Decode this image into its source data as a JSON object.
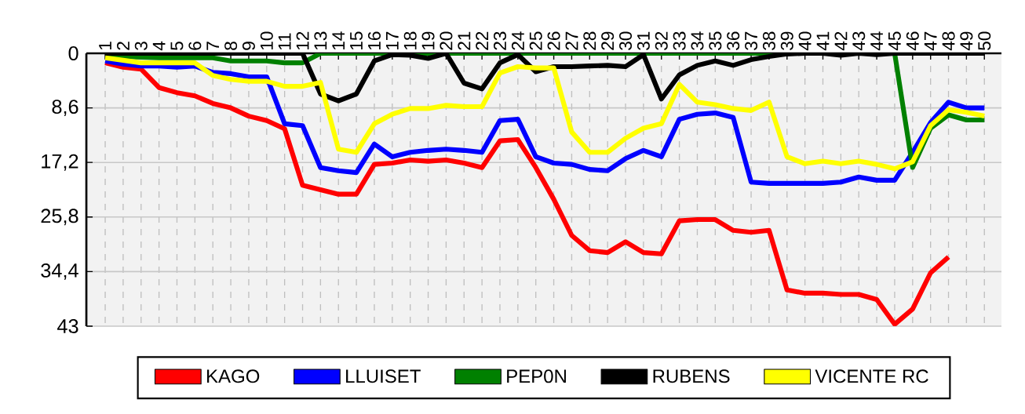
{
  "chart_data": {
    "type": "line",
    "categories": [
      "1",
      "2",
      "3",
      "4",
      "5",
      "6",
      "7",
      "8",
      "9",
      "10",
      "11",
      "12",
      "13",
      "14",
      "15",
      "16",
      "17",
      "18",
      "19",
      "20",
      "21",
      "22",
      "23",
      "24",
      "25",
      "26",
      "27",
      "28",
      "29",
      "30",
      "31",
      "32",
      "33",
      "34",
      "35",
      "36",
      "37",
      "38",
      "39",
      "40",
      "41",
      "42",
      "43",
      "44",
      "45",
      "46",
      "47",
      "48",
      "49",
      "50"
    ],
    "ylim": [
      43,
      0
    ],
    "yticks": [
      0,
      {
        "value": 8.6,
        "label": "8,6"
      },
      {
        "value": 17.2,
        "label": "17,2"
      },
      {
        "value": 25.8,
        "label": "25,8"
      },
      {
        "value": 34.4,
        "label": "34,4"
      },
      43
    ],
    "grid": true,
    "legend": "bottom",
    "series": [
      {
        "name": "KAGO",
        "color": "#ff0000",
        "values": [
          1.5,
          2.2,
          2.5,
          5.4,
          6.2,
          6.7,
          7.9,
          8.6,
          9.9,
          10.6,
          11.9,
          20.8,
          21.5,
          22.2,
          22.2,
          17.5,
          17.3,
          16.8,
          17,
          16.8,
          17.3,
          18,
          13.8,
          13.6,
          18,
          23,
          28.7,
          31.1,
          31.4,
          29.7,
          31.4,
          31.6,
          26.4,
          26.2,
          26.2,
          27.9,
          28.2,
          27.9,
          37.3,
          37.8,
          37.8,
          38,
          38,
          38.8,
          42.7,
          40.3,
          34.6,
          32.1,
          null,
          null
        ]
      },
      {
        "name": "LLUISET",
        "color": "#0000ff",
        "values": [
          1.2,
          1.7,
          2,
          2,
          2.2,
          2,
          3,
          3.2,
          3.7,
          3.7,
          11.1,
          11.4,
          18,
          18.5,
          18.8,
          14.3,
          16.3,
          15.6,
          15.3,
          15.1,
          15.3,
          15.6,
          10.6,
          10.4,
          16.3,
          17.3,
          17.5,
          18.3,
          18.5,
          16.6,
          15.3,
          16.3,
          10.4,
          9.6,
          9.4,
          10.1,
          20.3,
          20.5,
          20.5,
          20.5,
          20.5,
          20.3,
          19.5,
          20,
          20,
          15.6,
          10.9,
          7.7,
          8.6,
          8.6
        ]
      },
      {
        "name": "PEP0N",
        "color": "#008000",
        "values": [
          0.5,
          0.5,
          0.6,
          0.7,
          0.7,
          0.7,
          0.7,
          1.2,
          1.2,
          1.2,
          1.5,
          1.5,
          0,
          0,
          0,
          0,
          0,
          0,
          0,
          0,
          0,
          0,
          0,
          0,
          0,
          0,
          0,
          0,
          0,
          0,
          0,
          0,
          0,
          0,
          0,
          0,
          0,
          0,
          0,
          0,
          0,
          0,
          0,
          0,
          0,
          18,
          11.8,
          9.7,
          10.5,
          10.5
        ]
      },
      {
        "name": "RUBENS",
        "color": "#000000",
        "values": [
          0,
          0,
          0,
          0,
          0,
          0,
          0,
          0,
          0,
          0,
          0,
          0,
          6.4,
          7.5,
          6.4,
          1.2,
          0.2,
          0.3,
          0.8,
          0,
          4.7,
          5.6,
          1.5,
          0.2,
          2.9,
          2.1,
          2.1,
          2,
          1.9,
          2.1,
          0.2,
          7.2,
          3.4,
          1.9,
          1.2,
          1.9,
          1,
          0.5,
          0.1,
          0,
          0,
          0.3,
          0,
          0.2,
          0,
          0,
          0,
          0,
          0,
          0
        ]
      },
      {
        "name": "VICENTE RC",
        "color": "#ffff00",
        "values": [
          0.7,
          1.1,
          1.5,
          1.5,
          1.5,
          1.5,
          3.5,
          4.1,
          4.4,
          4.4,
          5.2,
          5.2,
          4.6,
          15.1,
          15.6,
          11.1,
          9.6,
          8.7,
          8.7,
          8.2,
          8.4,
          8.4,
          3.1,
          2.1,
          2.3,
          2.3,
          12.4,
          15.6,
          15.6,
          13.4,
          11.8,
          11.1,
          4.9,
          7.7,
          8.1,
          8.7,
          9,
          7.7,
          16.3,
          17.4,
          17,
          17.4,
          17,
          17.5,
          18.2,
          17.1,
          11.4,
          8.9,
          9.3,
          9.9
        ]
      }
    ]
  }
}
